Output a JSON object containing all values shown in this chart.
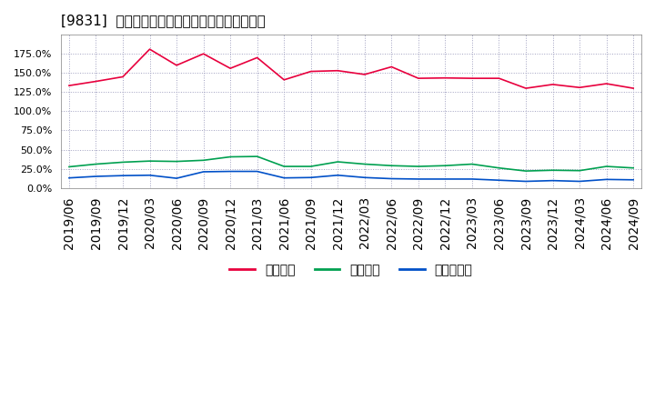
{
  "title": "[9831]  流動比率、当座比率、現預金比率の推移",
  "x_labels": [
    "2019/06",
    "2019/09",
    "2019/12",
    "2020/03",
    "2020/06",
    "2020/09",
    "2020/12",
    "2021/03",
    "2021/06",
    "2021/09",
    "2021/12",
    "2022/03",
    "2022/06",
    "2022/09",
    "2022/12",
    "2023/03",
    "2023/06",
    "2023/09",
    "2023/12",
    "2024/03",
    "2024/06",
    "2024/09"
  ],
  "ryudo": [
    133.5,
    139.0,
    145.0,
    181.0,
    160.0,
    175.0,
    156.0,
    170.0,
    141.0,
    152.0,
    153.0,
    148.0,
    158.0,
    143.0,
    143.5,
    143.0,
    143.0,
    130.0,
    135.0,
    131.0,
    136.0,
    130.0
  ],
  "toza": [
    27.5,
    31.0,
    33.5,
    35.0,
    34.5,
    36.0,
    40.5,
    41.0,
    28.0,
    28.0,
    34.0,
    31.0,
    29.0,
    28.0,
    29.0,
    31.0,
    26.0,
    22.0,
    23.0,
    22.5,
    28.0,
    26.0
  ],
  "genkin": [
    13.0,
    15.0,
    16.0,
    16.5,
    12.5,
    21.0,
    21.5,
    21.5,
    13.0,
    13.5,
    16.5,
    13.5,
    12.0,
    11.5,
    11.5,
    11.5,
    10.0,
    8.5,
    9.5,
    8.5,
    11.0,
    10.5
  ],
  "ryudo_color": "#e8003d",
  "toza_color": "#00a050",
  "genkin_color": "#0050c8",
  "bg_color": "#ffffff",
  "grid_color": "#a0a0c0",
  "ylim": [
    0.0,
    200.0
  ],
  "yticks": [
    0.0,
    25.0,
    50.0,
    75.0,
    100.0,
    125.0,
    150.0,
    175.0
  ],
  "legend_labels": [
    "流動比率",
    "当座比率",
    "現預金比率"
  ]
}
